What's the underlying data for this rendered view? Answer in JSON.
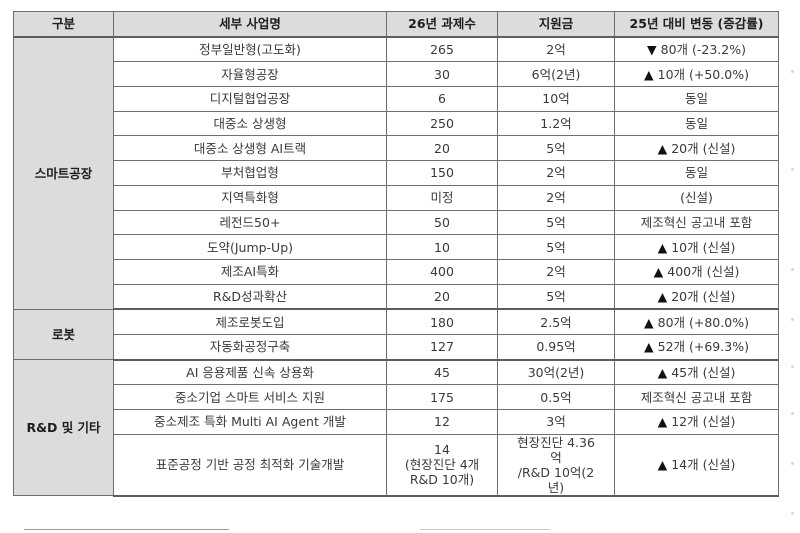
{
  "table": {
    "headers": [
      "구분",
      "세부 사업명",
      "26년 과제수",
      "지원금",
      "25년 대비 변동 (증감률)"
    ],
    "groups": [
      {
        "category": "스마트공장",
        "rows": [
          {
            "name": "정부일반형(고도화)",
            "count": "265",
            "fund": "2억",
            "change_mark": "▼",
            "change": " 80개 (-23.2%)"
          },
          {
            "name": "자율형공장",
            "count": "30",
            "fund": "6억(2년)",
            "change_mark": "▲",
            "change": " 10개 (+50.0%)"
          },
          {
            "name": "디지털협업공장",
            "count": "6",
            "fund": "10억",
            "change_mark": "",
            "change": "동일"
          },
          {
            "name": "대중소 상생형",
            "count": "250",
            "fund": "1.2억",
            "change_mark": "",
            "change": "동일"
          },
          {
            "name": "대중소 상생형 AI트랙",
            "count": "20",
            "fund": "5억",
            "change_mark": "▲",
            "change": " 20개 (신설)"
          },
          {
            "name": "부처협업형",
            "count": "150",
            "fund": "2억",
            "change_mark": "",
            "change": "동일"
          },
          {
            "name": "지역특화형",
            "count": "미정",
            "fund": "2억",
            "change_mark": "",
            "change": "(신설)"
          },
          {
            "name": "레전드50+",
            "count": "50",
            "fund": "5억",
            "change_mark": "",
            "change": "제조혁신 공고내 포함"
          },
          {
            "name": "도약(Jump-Up)",
            "count": "10",
            "fund": "5억",
            "change_mark": "▲",
            "change": " 10개 (신설)"
          },
          {
            "name": "제조AI특화",
            "count": "400",
            "fund": "2억",
            "change_mark": "▲",
            "change": " 400개 (신설)"
          },
          {
            "name": "R&D성과확산",
            "count": "20",
            "fund": "5억",
            "change_mark": "▲",
            "change": " 20개 (신설)"
          }
        ]
      },
      {
        "category": "로봇",
        "rows": [
          {
            "name": "제조로봇도입",
            "count": "180",
            "fund": "2.5억",
            "change_mark": "▲",
            "change": " 80개 (+80.0%)"
          },
          {
            "name": "자동화공정구축",
            "count": "127",
            "fund": "0.95억",
            "change_mark": "▲",
            "change": " 52개 (+69.3%)"
          }
        ]
      },
      {
        "category": "R&D 및 기타",
        "rows": [
          {
            "name": "AI 응용제품 신속 상용화",
            "count": "45",
            "fund": "30억(2년)",
            "change_mark": "▲",
            "change": " 45개 (신설)"
          },
          {
            "name": "중소기업 스마트 서비스 지원",
            "count": "175",
            "fund": "0.5억",
            "change_mark": "",
            "change": "제조혁신 공고내 포함"
          },
          {
            "name": "중소제조 특화 Multi AI Agent 개발",
            "count": "12",
            "fund": "3억",
            "change_mark": "▲",
            "change": " 12개 (신설)"
          },
          {
            "name": "표준공정 기반 공정 최적화 기술개발",
            "count_lines": [
              "14",
              "(현장진단 4개",
              "R&D 10개)"
            ],
            "fund_lines": [
              "현장진단 4.36",
              "억",
              "/R&D 10억(2",
              "년)"
            ],
            "change_mark": "▲",
            "change": " 14개 (신설)"
          }
        ]
      }
    ]
  }
}
